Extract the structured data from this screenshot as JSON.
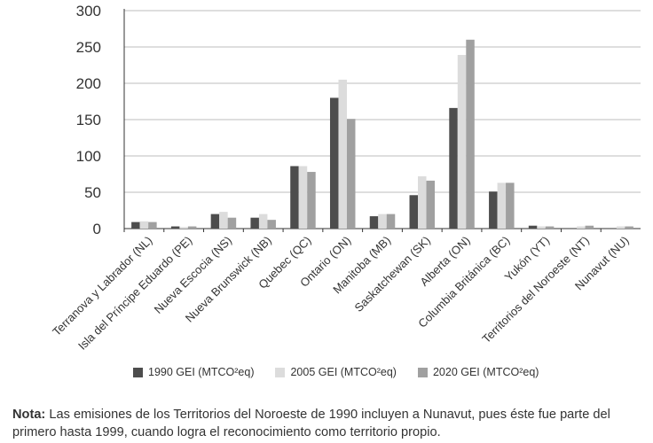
{
  "chart_data": {
    "type": "bar",
    "categories": [
      "Terranova y Labrador (NL)",
      "Isla del Príncipe Eduardo (PE)",
      "Nueva Escocia (NS)",
      "Nueva Brunswick (NB)",
      "Quebec (QC)",
      "Ontario (ON)",
      "Manitoba (MB)",
      "Saskatchewan (SK)",
      "Alberta (ON)",
      "Columbia Británica (BC)",
      "Yukón (YT)",
      "Territorios del Noroeste (NT)",
      "Nunavut (NU)"
    ],
    "series": [
      {
        "name": "1990 GEI (MTCO²eq)",
        "color": "#4d4d4d",
        "values": [
          9,
          3,
          20,
          15,
          86,
          180,
          17,
          46,
          166,
          51,
          4,
          0,
          0
        ]
      },
      {
        "name": "2005 GEI (MTCO²eq)",
        "color": "#dcdcdc",
        "values": [
          10,
          2,
          23,
          20,
          86,
          205,
          20,
          72,
          239,
          63,
          3,
          3,
          3
        ]
      },
      {
        "name": "2020 GEI (MTCO²eq)",
        "color": "#a0a0a0",
        "values": [
          9,
          3,
          15,
          12,
          78,
          151,
          20,
          66,
          260,
          63,
          3,
          4,
          3
        ]
      }
    ],
    "yticks": [
      "0",
      "50",
      "100",
      "150",
      "200",
      "250",
      "300"
    ],
    "ylim": [
      0,
      300
    ],
    "grid": true,
    "legend": "bottom"
  },
  "note": {
    "label": "Nota:",
    "text": "Las emisiones de los Territorios del Noroeste de 1990 incluyen a Nunavut, pues éste fue parte del primero hasta 1999, cuando logra el reconocimiento como territorio propio."
  }
}
